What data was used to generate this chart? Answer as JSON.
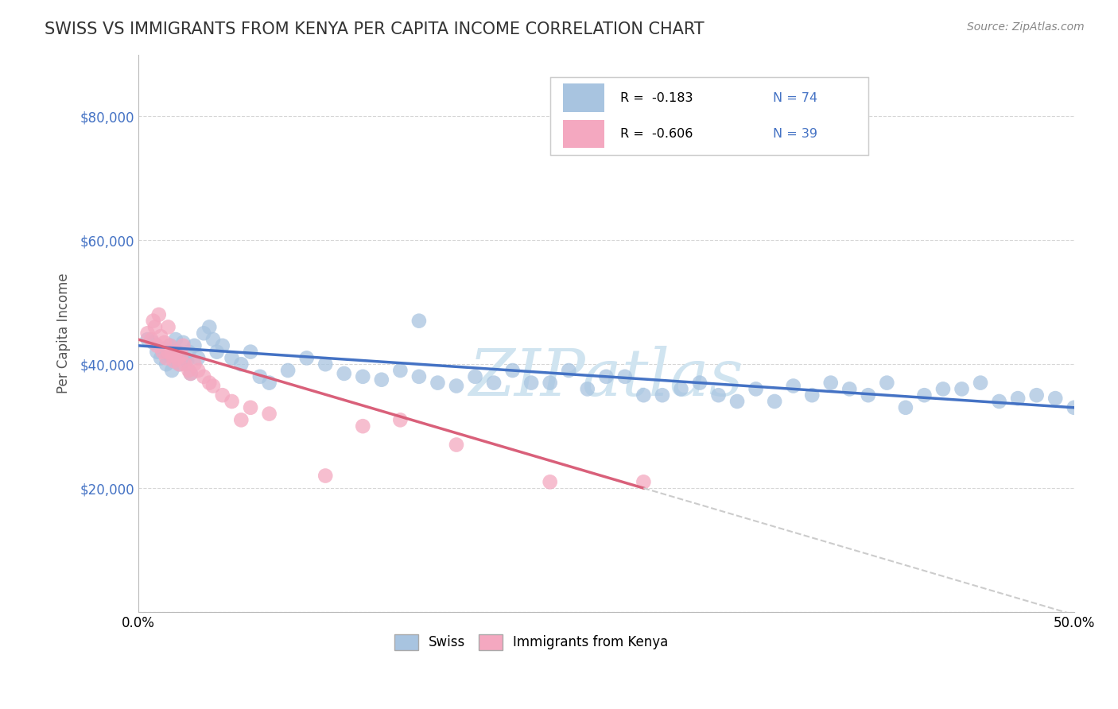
{
  "title": "SWISS VS IMMIGRANTS FROM KENYA PER CAPITA INCOME CORRELATION CHART",
  "source": "Source: ZipAtlas.com",
  "ylabel": "Per Capita Income",
  "xlim": [
    0.0,
    0.5
  ],
  "ylim": [
    0,
    90000
  ],
  "yticks": [
    0,
    20000,
    40000,
    60000,
    80000
  ],
  "ytick_labels": [
    "",
    "$20,000",
    "$40,000",
    "$60,000",
    "$80,000"
  ],
  "xtick_positions": [
    0.0,
    0.05,
    0.1,
    0.15,
    0.2,
    0.25,
    0.3,
    0.35,
    0.4,
    0.45,
    0.5
  ],
  "xtick_labels": [
    "0.0%",
    "",
    "",
    "",
    "",
    "",
    "",
    "",
    "",
    "",
    "50.0%"
  ],
  "legend_r_swiss": "-0.183",
  "legend_n_swiss": "74",
  "legend_r_kenya": "-0.606",
  "legend_n_kenya": "39",
  "swiss_color": "#a8c4e0",
  "kenya_color": "#f4a8c0",
  "swiss_line_color": "#4472c4",
  "kenya_line_color": "#d9607a",
  "watermark_color": "#d0e4f0",
  "swiss_x": [
    0.005,
    0.008,
    0.01,
    0.012,
    0.014,
    0.015,
    0.016,
    0.017,
    0.018,
    0.019,
    0.02,
    0.021,
    0.022,
    0.024,
    0.025,
    0.026,
    0.027,
    0.028,
    0.03,
    0.032,
    0.035,
    0.038,
    0.04,
    0.042,
    0.045,
    0.05,
    0.055,
    0.06,
    0.065,
    0.07,
    0.08,
    0.09,
    0.1,
    0.11,
    0.12,
    0.13,
    0.14,
    0.15,
    0.16,
    0.17,
    0.18,
    0.19,
    0.2,
    0.22,
    0.24,
    0.25,
    0.27,
    0.29,
    0.3,
    0.31,
    0.33,
    0.34,
    0.35,
    0.36,
    0.37,
    0.38,
    0.4,
    0.42,
    0.43,
    0.45,
    0.46,
    0.48,
    0.49,
    0.5,
    0.28,
    0.32,
    0.26,
    0.44,
    0.41,
    0.39,
    0.23,
    0.21,
    0.47,
    0.15
  ],
  "swiss_y": [
    44000,
    43500,
    42000,
    41000,
    42500,
    40000,
    41500,
    43000,
    39000,
    41000,
    44000,
    42000,
    40000,
    43500,
    41000,
    40500,
    42000,
    38500,
    43000,
    41000,
    45000,
    46000,
    44000,
    42000,
    43000,
    41000,
    40000,
    42000,
    38000,
    37000,
    39000,
    41000,
    40000,
    38500,
    38000,
    37500,
    39000,
    38000,
    37000,
    36500,
    38000,
    37000,
    39000,
    37000,
    36000,
    38000,
    35000,
    36000,
    37000,
    35000,
    36000,
    34000,
    36500,
    35000,
    37000,
    36000,
    37000,
    35000,
    36000,
    37000,
    34000,
    35000,
    34500,
    33000,
    35000,
    34000,
    38000,
    36000,
    33000,
    35000,
    39000,
    37000,
    34500,
    47000
  ],
  "kenya_x": [
    0.005,
    0.007,
    0.009,
    0.01,
    0.012,
    0.013,
    0.014,
    0.015,
    0.016,
    0.017,
    0.018,
    0.019,
    0.02,
    0.021,
    0.022,
    0.023,
    0.025,
    0.027,
    0.028,
    0.03,
    0.032,
    0.035,
    0.038,
    0.04,
    0.045,
    0.05,
    0.06,
    0.07,
    0.1,
    0.14,
    0.17,
    0.22,
    0.27,
    0.008,
    0.011,
    0.016,
    0.024,
    0.055,
    0.12
  ],
  "kenya_y": [
    45000,
    44000,
    46000,
    43000,
    44500,
    42000,
    43500,
    41000,
    42000,
    43000,
    41500,
    40500,
    42000,
    41000,
    40000,
    41500,
    40000,
    39000,
    38500,
    40000,
    39000,
    38000,
    37000,
    36500,
    35000,
    34000,
    33000,
    32000,
    22000,
    31000,
    27000,
    21000,
    21000,
    47000,
    48000,
    46000,
    43000,
    31000,
    30000
  ]
}
